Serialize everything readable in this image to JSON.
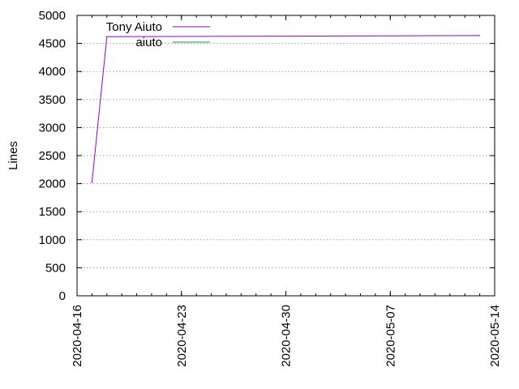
{
  "chart_data": {
    "type": "line",
    "title": "",
    "xlabel": "",
    "ylabel": "Lines",
    "x_type": "date",
    "xlim": [
      "2020-04-16",
      "2020-05-14"
    ],
    "ylim": [
      0,
      5000
    ],
    "y_ticks": [
      0,
      500,
      1000,
      1500,
      2000,
      2500,
      3000,
      3500,
      4000,
      4500,
      5000
    ],
    "x_ticks": [
      "2020-04-16",
      "2020-04-23",
      "2020-04-30",
      "2020-05-07",
      "2020-05-14"
    ],
    "grid": true,
    "legend_position": "top-left",
    "series": [
      {
        "name": "Tony Aiuto",
        "color": "#9400d3",
        "points": [
          {
            "x": "2020-04-17",
            "y": 2020
          },
          {
            "x": "2020-04-18",
            "y": 4620
          },
          {
            "x": "2020-05-13",
            "y": 4640
          }
        ]
      },
      {
        "name": "aiuto",
        "color": "#009e73",
        "points": []
      }
    ]
  }
}
